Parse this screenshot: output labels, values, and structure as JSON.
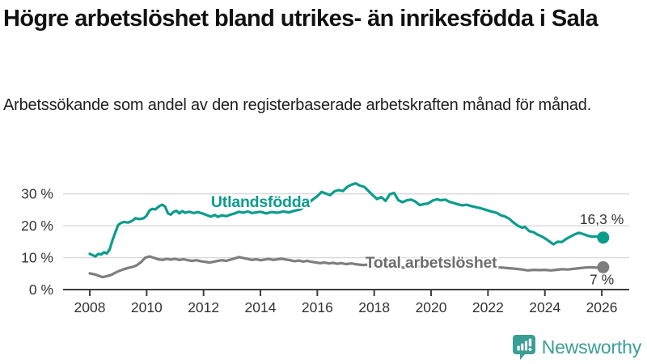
{
  "header": {
    "title": "Högre arbetslöshet bland utrikes- än inrikesfödda i Sala",
    "subtitle": "Arbetssökande som andel av den registerbaserade arbetskraften månad för månad."
  },
  "branding": {
    "logo_text": "Newsworthy",
    "logo_color": "#3b9e96"
  },
  "chart_data": {
    "type": "line",
    "title": "Högre arbetslöshet bland utrikes- än inrikesfödda i Sala",
    "subtitle": "Arbetssökande som andel av den registerbaserade arbetskraften månad för månad.",
    "grid": "horizontal-only",
    "legend_position": "inline-labels",
    "colors": {
      "gridline": "#d8d8d8",
      "axis": "#3d3d3d",
      "tick_label": "#333333",
      "value_label": "#333333"
    },
    "x_axis": {
      "range": [
        2007.05,
        2027.0
      ],
      "ticks": [
        2008,
        2010,
        2012,
        2014,
        2016,
        2018,
        2020,
        2022,
        2024,
        2026
      ]
    },
    "y_axis": {
      "range": [
        0,
        35
      ],
      "ticks": [
        {
          "value": 0,
          "label": "0 %"
        },
        {
          "value": 10,
          "label": "10 %"
        },
        {
          "value": 20,
          "label": "20 %"
        },
        {
          "value": 30,
          "label": "30 %"
        }
      ]
    },
    "series": [
      {
        "name": "Utlandsfödda",
        "color": "#0c9c8d",
        "label_color": "#0c9c8d",
        "label_pos": {
          "x": 2014.0,
          "y": 25.9
        },
        "end_value": 16.3,
        "end_label": "16,3 %",
        "end_label_pos": {
          "x": 2026.0,
          "y": 20.6
        },
        "points": [
          [
            2008.0,
            11.2
          ],
          [
            2008.1,
            10.8
          ],
          [
            2008.2,
            10.4
          ],
          [
            2008.3,
            11.2
          ],
          [
            2008.4,
            11.0
          ],
          [
            2008.5,
            11.7
          ],
          [
            2008.6,
            11.3
          ],
          [
            2008.7,
            12.6
          ],
          [
            2008.8,
            15.5
          ],
          [
            2008.9,
            18.0
          ],
          [
            2009.0,
            20.3
          ],
          [
            2009.1,
            20.9
          ],
          [
            2009.2,
            21.2
          ],
          [
            2009.35,
            21.0
          ],
          [
            2009.5,
            21.6
          ],
          [
            2009.6,
            22.4
          ],
          [
            2009.75,
            22.1
          ],
          [
            2009.9,
            22.4
          ],
          [
            2010.0,
            23.2
          ],
          [
            2010.1,
            24.8
          ],
          [
            2010.2,
            25.3
          ],
          [
            2010.3,
            25.1
          ],
          [
            2010.45,
            26.2
          ],
          [
            2010.55,
            26.6
          ],
          [
            2010.65,
            26.0
          ],
          [
            2010.75,
            23.9
          ],
          [
            2010.85,
            23.5
          ],
          [
            2010.95,
            24.4
          ],
          [
            2011.05,
            24.7
          ],
          [
            2011.15,
            23.9
          ],
          [
            2011.25,
            24.6
          ],
          [
            2011.35,
            24.1
          ],
          [
            2011.5,
            24.4
          ],
          [
            2011.65,
            24.0
          ],
          [
            2011.8,
            24.3
          ],
          [
            2011.95,
            23.9
          ],
          [
            2012.1,
            23.4
          ],
          [
            2012.25,
            22.9
          ],
          [
            2012.4,
            23.4
          ],
          [
            2012.5,
            22.8
          ],
          [
            2012.65,
            23.3
          ],
          [
            2012.8,
            23.0
          ],
          [
            2012.95,
            23.5
          ],
          [
            2013.1,
            23.9
          ],
          [
            2013.25,
            24.4
          ],
          [
            2013.4,
            24.1
          ],
          [
            2013.55,
            24.5
          ],
          [
            2013.7,
            24.0
          ],
          [
            2013.85,
            24.2
          ],
          [
            2014.0,
            24.4
          ],
          [
            2014.2,
            23.9
          ],
          [
            2014.4,
            24.3
          ],
          [
            2014.6,
            24.1
          ],
          [
            2014.8,
            24.5
          ],
          [
            2015.0,
            24.2
          ],
          [
            2015.2,
            24.7
          ],
          [
            2015.4,
            25.1
          ],
          [
            2015.55,
            26.0
          ],
          [
            2015.7,
            27.2
          ],
          [
            2015.85,
            28.3
          ],
          [
            2016.0,
            29.3
          ],
          [
            2016.15,
            30.6
          ],
          [
            2016.3,
            30.1
          ],
          [
            2016.45,
            29.6
          ],
          [
            2016.6,
            30.8
          ],
          [
            2016.75,
            31.2
          ],
          [
            2016.9,
            30.9
          ],
          [
            2017.05,
            32.2
          ],
          [
            2017.2,
            32.9
          ],
          [
            2017.35,
            33.3
          ],
          [
            2017.5,
            32.6
          ],
          [
            2017.65,
            32.2
          ],
          [
            2017.8,
            30.9
          ],
          [
            2017.95,
            29.6
          ],
          [
            2018.1,
            28.4
          ],
          [
            2018.25,
            29.0
          ],
          [
            2018.4,
            27.8
          ],
          [
            2018.55,
            29.9
          ],
          [
            2018.7,
            30.3
          ],
          [
            2018.85,
            28.0
          ],
          [
            2019.0,
            27.4
          ],
          [
            2019.15,
            28.0
          ],
          [
            2019.3,
            28.2
          ],
          [
            2019.45,
            27.6
          ],
          [
            2019.6,
            26.5
          ],
          [
            2019.75,
            26.8
          ],
          [
            2019.9,
            27.0
          ],
          [
            2020.05,
            27.9
          ],
          [
            2020.2,
            28.3
          ],
          [
            2020.35,
            28.0
          ],
          [
            2020.5,
            28.2
          ],
          [
            2020.65,
            27.5
          ],
          [
            2020.8,
            27.1
          ],
          [
            2020.95,
            26.7
          ],
          [
            2021.1,
            26.4
          ],
          [
            2021.25,
            26.6
          ],
          [
            2021.4,
            26.2
          ],
          [
            2021.55,
            25.9
          ],
          [
            2021.7,
            25.6
          ],
          [
            2021.85,
            25.2
          ],
          [
            2022.0,
            24.8
          ],
          [
            2022.15,
            24.4
          ],
          [
            2022.3,
            24.1
          ],
          [
            2022.45,
            23.3
          ],
          [
            2022.6,
            22.9
          ],
          [
            2022.75,
            22.2
          ],
          [
            2022.9,
            21.0
          ],
          [
            2023.05,
            20.0
          ],
          [
            2023.2,
            19.4
          ],
          [
            2023.3,
            19.7
          ],
          [
            2023.45,
            18.3
          ],
          [
            2023.6,
            18.0
          ],
          [
            2023.75,
            17.2
          ],
          [
            2023.9,
            16.6
          ],
          [
            2024.05,
            15.8
          ],
          [
            2024.2,
            14.8
          ],
          [
            2024.3,
            14.2
          ],
          [
            2024.45,
            15.0
          ],
          [
            2024.6,
            14.9
          ],
          [
            2024.75,
            15.9
          ],
          [
            2024.9,
            16.6
          ],
          [
            2025.05,
            17.3
          ],
          [
            2025.2,
            17.8
          ],
          [
            2025.35,
            17.4
          ],
          [
            2025.5,
            16.9
          ],
          [
            2025.65,
            16.6
          ],
          [
            2025.8,
            16.7
          ],
          [
            2025.95,
            16.4
          ],
          [
            2026.05,
            16.3
          ]
        ]
      },
      {
        "name": "Total arbetslöshet",
        "color": "#7e7e7e",
        "label_color": "#6d6d6d",
        "label_pos": {
          "x": 2020.0,
          "y": 6.9
        },
        "end_value": 7.0,
        "end_label": "7 %",
        "end_label_pos": {
          "x": 2026.0,
          "y": 1.6
        },
        "points": [
          [
            2008.0,
            5.1
          ],
          [
            2008.1,
            4.9
          ],
          [
            2008.2,
            4.7
          ],
          [
            2008.3,
            4.4
          ],
          [
            2008.45,
            3.9
          ],
          [
            2008.6,
            4.2
          ],
          [
            2008.75,
            4.6
          ],
          [
            2008.9,
            5.3
          ],
          [
            2009.05,
            5.9
          ],
          [
            2009.2,
            6.4
          ],
          [
            2009.35,
            6.8
          ],
          [
            2009.5,
            7.1
          ],
          [
            2009.65,
            7.6
          ],
          [
            2009.8,
            8.6
          ],
          [
            2009.95,
            10.0
          ],
          [
            2010.1,
            10.4
          ],
          [
            2010.25,
            10.0
          ],
          [
            2010.4,
            9.5
          ],
          [
            2010.55,
            9.3
          ],
          [
            2010.7,
            9.6
          ],
          [
            2010.85,
            9.4
          ],
          [
            2011.0,
            9.6
          ],
          [
            2011.15,
            9.3
          ],
          [
            2011.3,
            9.5
          ],
          [
            2011.45,
            9.2
          ],
          [
            2011.6,
            9.0
          ],
          [
            2011.75,
            9.2
          ],
          [
            2011.9,
            8.9
          ],
          [
            2012.05,
            8.7
          ],
          [
            2012.2,
            8.5
          ],
          [
            2012.35,
            8.7
          ],
          [
            2012.5,
            9.0
          ],
          [
            2012.65,
            9.2
          ],
          [
            2012.8,
            9.0
          ],
          [
            2012.95,
            9.4
          ],
          [
            2013.1,
            9.8
          ],
          [
            2013.25,
            10.2
          ],
          [
            2013.4,
            9.9
          ],
          [
            2013.55,
            9.6
          ],
          [
            2013.7,
            9.3
          ],
          [
            2013.85,
            9.5
          ],
          [
            2014.0,
            9.2
          ],
          [
            2014.15,
            9.4
          ],
          [
            2014.3,
            9.6
          ],
          [
            2014.45,
            9.3
          ],
          [
            2014.6,
            9.5
          ],
          [
            2014.75,
            9.7
          ],
          [
            2014.9,
            9.4
          ],
          [
            2015.05,
            9.2
          ],
          [
            2015.2,
            8.9
          ],
          [
            2015.35,
            9.1
          ],
          [
            2015.5,
            8.8
          ],
          [
            2015.65,
            9.0
          ],
          [
            2015.8,
            8.7
          ],
          [
            2015.95,
            8.5
          ],
          [
            2016.1,
            8.3
          ],
          [
            2016.25,
            8.5
          ],
          [
            2016.4,
            8.2
          ],
          [
            2016.55,
            8.4
          ],
          [
            2016.7,
            8.1
          ],
          [
            2016.85,
            8.3
          ],
          [
            2017.0,
            8.0
          ],
          [
            2017.2,
            8.2
          ],
          [
            2017.4,
            7.9
          ],
          [
            2017.6,
            7.7
          ],
          [
            2017.8,
            7.8
          ],
          [
            2018.0,
            7.5
          ],
          [
            2018.25,
            7.3
          ],
          [
            2018.5,
            7.2
          ],
          [
            2018.75,
            7.0
          ],
          [
            2019.0,
            6.9
          ],
          [
            2019.25,
            7.1
          ],
          [
            2019.5,
            7.3
          ],
          [
            2019.75,
            7.4
          ],
          [
            2020.0,
            7.8
          ],
          [
            2020.2,
            9.0
          ],
          [
            2020.4,
            9.4
          ],
          [
            2020.6,
            9.1
          ],
          [
            2020.8,
            8.8
          ],
          [
            2021.0,
            8.5
          ],
          [
            2021.25,
            8.2
          ],
          [
            2021.5,
            7.9
          ],
          [
            2021.75,
            7.5
          ],
          [
            2022.0,
            7.2
          ],
          [
            2022.25,
            7.0
          ],
          [
            2022.5,
            6.9
          ],
          [
            2022.75,
            6.7
          ],
          [
            2023.0,
            6.5
          ],
          [
            2023.2,
            6.3
          ],
          [
            2023.4,
            6.0
          ],
          [
            2023.6,
            6.2
          ],
          [
            2023.8,
            6.1
          ],
          [
            2024.0,
            6.2
          ],
          [
            2024.2,
            6.0
          ],
          [
            2024.4,
            6.2
          ],
          [
            2024.6,
            6.4
          ],
          [
            2024.8,
            6.3
          ],
          [
            2025.0,
            6.5
          ],
          [
            2025.2,
            6.7
          ],
          [
            2025.4,
            6.9
          ],
          [
            2025.6,
            7.0
          ],
          [
            2025.8,
            6.9
          ],
          [
            2026.05,
            7.0
          ]
        ]
      }
    ]
  }
}
